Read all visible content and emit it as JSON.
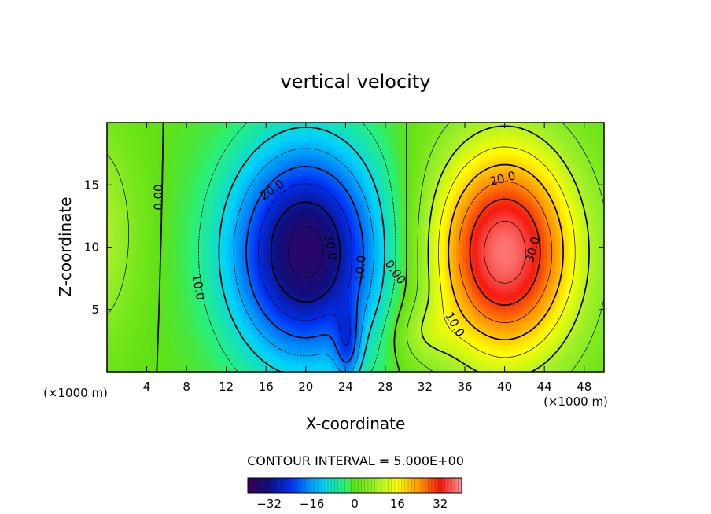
{
  "chart_data": {
    "type": "heatmap",
    "title": "vertical velocity",
    "xlabel": "X-coordinate",
    "ylabel": "Z-coordinate",
    "x_unit": "(×1000 m)",
    "y_unit": "(×1000 m)",
    "xlim": [
      0,
      50
    ],
    "ylim": [
      0,
      20
    ],
    "xticks": [
      4,
      8,
      12,
      16,
      20,
      24,
      28,
      32,
      36,
      40,
      44,
      48
    ],
    "yticks": [
      5,
      10,
      15
    ],
    "contour_interval_text": "CONTOUR INTERVAL = 5.000E+00",
    "contour_interval": 5,
    "colorbar": {
      "range": [
        -40,
        40
      ],
      "ticks": [
        -32,
        -16,
        0,
        16,
        32
      ],
      "tick_labels": [
        "−32",
        "−16",
        "0",
        "16",
        "32"
      ]
    },
    "features": [
      {
        "kind": "downdraft",
        "center_x": 20,
        "center_z": 9.6,
        "peak": -37,
        "sigma_x": 5.4,
        "sigma_z": 6.2
      },
      {
        "kind": "updraft",
        "center_x": 40,
        "center_z": 9.6,
        "peak": 38,
        "sigma_x": 5.2,
        "sigma_z": 6.2
      },
      {
        "kind": "edge-updraft",
        "center_x": -1.5,
        "center_z": 11,
        "peak": 10,
        "sigma_x": 3.2,
        "sigma_z": 6
      },
      {
        "kind": "downdraft-tail",
        "center_x": 24.2,
        "center_z": 2,
        "peak": -12,
        "sigma_x": 0.9,
        "sigma_z": 2.2
      },
      {
        "kind": "minor-updraft",
        "center_x": 31.5,
        "center_z": 3,
        "peak": 6,
        "sigma_x": 2.2,
        "sigma_z": 1.8
      }
    ],
    "contour_labels": [
      {
        "text": "0.00",
        "x": 5.2,
        "z": 14.0,
        "rotate": -90
      },
      {
        "text": "20.0",
        "x": 16.6,
        "z": 14.6,
        "rotate": -35
      },
      {
        "text": "30.0",
        "x": 22.5,
        "z": 10.0,
        "rotate": 80
      },
      {
        "text": "10.0",
        "x": 25.5,
        "z": 8.3,
        "rotate": -85
      },
      {
        "text": "10.0",
        "x": 9.2,
        "z": 6.8,
        "rotate": 80
      },
      {
        "text": "0.00",
        "x": 29.0,
        "z": 8.0,
        "rotate": 55
      },
      {
        "text": "20.0",
        "x": 39.8,
        "z": 15.5,
        "rotate": -15
      },
      {
        "text": "30.0",
        "x": 42.8,
        "z": 9.8,
        "rotate": -75
      },
      {
        "text": "10.0",
        "x": 35.0,
        "z": 3.8,
        "rotate": 60
      }
    ]
  }
}
